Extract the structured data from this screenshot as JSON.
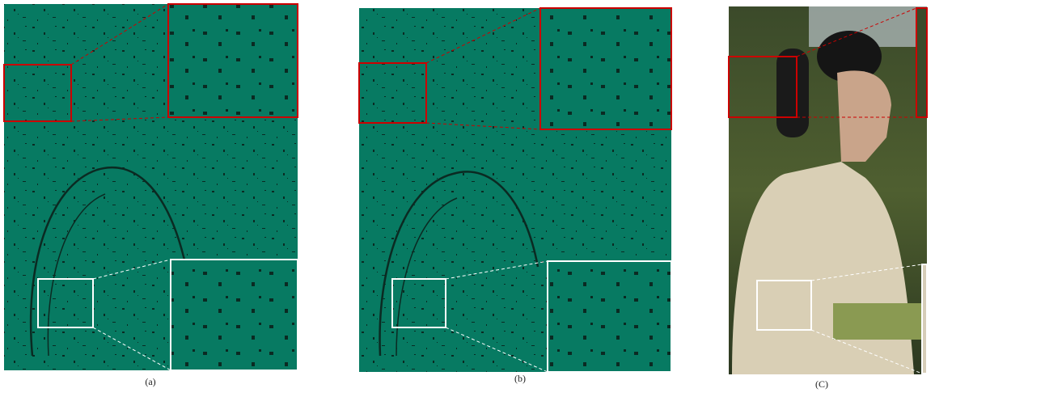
{
  "panels": [
    {
      "label": "(a)"
    },
    {
      "label": "(b)"
    },
    {
      "label": "(C)"
    }
  ]
}
